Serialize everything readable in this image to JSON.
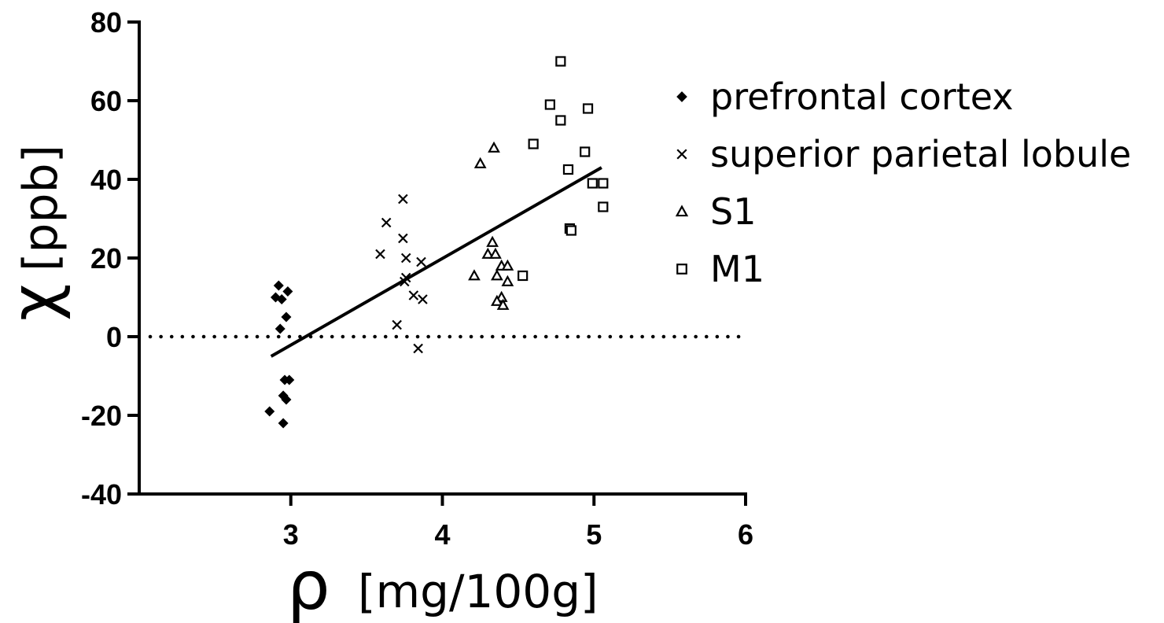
{
  "chart_data": {
    "type": "scatter",
    "title": "",
    "xlabel_symbol": "ρ",
    "xlabel_unit": "[mg/100g]",
    "ylabel_symbol": "χ",
    "ylabel_unit": "[ppb]",
    "xlim": [
      2,
      6
    ],
    "ylim": [
      -40,
      80
    ],
    "xticks": [
      3,
      4,
      5,
      6
    ],
    "yticks": [
      -40,
      -20,
      0,
      20,
      40,
      60,
      80
    ],
    "reference_line": {
      "y": 0,
      "style": "dotted"
    },
    "fit_line": {
      "x": [
        2.87,
        5.05
      ],
      "y": [
        -5,
        43
      ]
    },
    "legend_position": "right",
    "series": [
      {
        "name": "prefrontal cortex",
        "marker": "diamond",
        "points": [
          [
            2.92,
            13
          ],
          [
            2.98,
            11.5
          ],
          [
            2.9,
            10
          ],
          [
            2.94,
            9.5
          ],
          [
            2.97,
            5
          ],
          [
            2.93,
            2
          ],
          [
            2.96,
            -11
          ],
          [
            2.99,
            -11
          ],
          [
            2.95,
            -15
          ],
          [
            2.97,
            -16
          ],
          [
            2.86,
            -19
          ],
          [
            2.95,
            -22
          ]
        ]
      },
      {
        "name": "superior parietal lobule",
        "marker": "x",
        "points": [
          [
            3.74,
            35
          ],
          [
            3.63,
            29
          ],
          [
            3.74,
            25
          ],
          [
            3.59,
            21
          ],
          [
            3.76,
            20
          ],
          [
            3.86,
            19
          ],
          [
            3.76,
            15
          ],
          [
            3.75,
            14
          ],
          [
            3.81,
            10.5
          ],
          [
            3.87,
            9.5
          ],
          [
            3.7,
            3
          ],
          [
            3.84,
            -3
          ]
        ]
      },
      {
        "name": "S1",
        "marker": "triangle",
        "points": [
          [
            4.34,
            48
          ],
          [
            4.25,
            44
          ],
          [
            4.33,
            24
          ],
          [
            4.3,
            21
          ],
          [
            4.35,
            21
          ],
          [
            4.39,
            18
          ],
          [
            4.43,
            18
          ],
          [
            4.21,
            15.5
          ],
          [
            4.36,
            15.5
          ],
          [
            4.43,
            14
          ],
          [
            4.39,
            10
          ],
          [
            4.36,
            9
          ],
          [
            4.4,
            8
          ]
        ]
      },
      {
        "name": "M1",
        "marker": "square",
        "points": [
          [
            4.78,
            70
          ],
          [
            4.71,
            59
          ],
          [
            4.96,
            58
          ],
          [
            4.78,
            55
          ],
          [
            4.6,
            49
          ],
          [
            4.94,
            47
          ],
          [
            4.83,
            42.5
          ],
          [
            4.99,
            39
          ],
          [
            5.06,
            39
          ],
          [
            5.06,
            33
          ],
          [
            4.84,
            27.5
          ],
          [
            4.85,
            27
          ],
          [
            4.53,
            15.5
          ]
        ]
      }
    ]
  }
}
